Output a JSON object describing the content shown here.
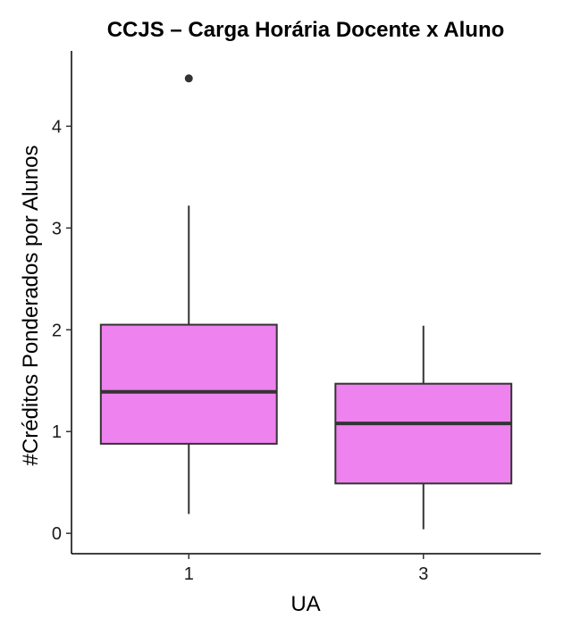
{
  "chart_data": {
    "type": "boxplot",
    "title": "CCJS  – Carga Horária Docente x Aluno",
    "xlabel": "UA",
    "ylabel": "#Créditos Ponderados por Alunos",
    "categories": [
      "1",
      "3"
    ],
    "y_ticks": [
      "0",
      "1",
      "2",
      "3",
      "4"
    ],
    "ylim": [
      -0.2,
      4.74
    ],
    "grid": false,
    "legend": "none",
    "box_fill": "#EE82EE",
    "line_color": "#333333",
    "boxes": [
      {
        "category": "1",
        "whisker_low": 0.19,
        "q1": 0.88,
        "median": 1.39,
        "q3": 2.05,
        "whisker_high": 3.22,
        "outliers": [
          4.47
        ]
      },
      {
        "category": "3",
        "whisker_low": 0.04,
        "q1": 0.49,
        "median": 1.08,
        "q3": 1.47,
        "whisker_high": 2.04,
        "outliers": []
      }
    ]
  }
}
